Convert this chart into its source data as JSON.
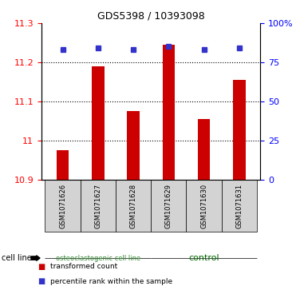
{
  "title": "GDS5398 / 10393098",
  "samples": [
    "GSM1071626",
    "GSM1071627",
    "GSM1071628",
    "GSM1071629",
    "GSM1071630",
    "GSM1071631"
  ],
  "bar_values": [
    10.975,
    11.19,
    11.075,
    11.245,
    11.055,
    11.155
  ],
  "percentile_values": [
    83,
    84,
    83,
    85,
    83,
    84
  ],
  "ylim_left": [
    10.9,
    11.3
  ],
  "ylim_right": [
    0,
    100
  ],
  "yticks_left": [
    10.9,
    11.0,
    11.1,
    11.2,
    11.3
  ],
  "ytick_labels_left": [
    "10.9",
    "11",
    "11.1",
    "11.2",
    "11.3"
  ],
  "yticks_right": [
    0,
    25,
    50,
    75,
    100
  ],
  "ytick_labels_right": [
    "0",
    "25",
    "50",
    "75",
    "100%"
  ],
  "bar_color": "#cc0000",
  "dot_color": "#3333cc",
  "bar_bottom": 10.9,
  "group_configs": [
    {
      "xmin": -0.5,
      "xmax": 2.5,
      "color": "#aaeebb",
      "label": "osteoclastogenic cell line",
      "label_color": "#338833",
      "label_fontsize": 6
    },
    {
      "xmin": 2.5,
      "xmax": 5.5,
      "color": "#44dd55",
      "label": "control",
      "label_color": "#006600",
      "label_fontsize": 8
    }
  ],
  "cell_line_label": "cell line",
  "legend_items": [
    {
      "color": "#cc0000",
      "label": "transformed count"
    },
    {
      "color": "#3333cc",
      "label": "percentile rank within the sample"
    }
  ],
  "bar_width": 0.35,
  "tick_fontsize": 8,
  "grid_yticks": [
    11.0,
    11.1,
    11.2
  ]
}
